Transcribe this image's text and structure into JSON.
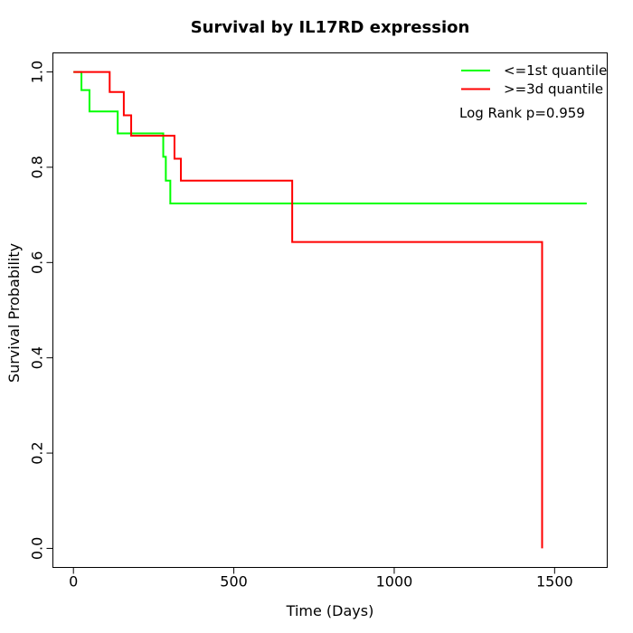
{
  "figure": {
    "background_color": "#ffffff",
    "axis_color": "#000000"
  },
  "chart_data": {
    "type": "line",
    "subtype": "kaplan-meier-step",
    "title": "Survival by IL17RD expression",
    "xlabel": "Time (Days)",
    "ylabel": "Survival Probability",
    "x_range": [
      -64,
      1664
    ],
    "y_range": [
      -0.04,
      1.04
    ],
    "grid": false,
    "legend_position": "top-right-inside",
    "x_ticks": [
      {
        "value": 0,
        "label": "0"
      },
      {
        "value": 500,
        "label": "500"
      },
      {
        "value": 1000,
        "label": "1000"
      },
      {
        "value": 1500,
        "label": "1500"
      }
    ],
    "y_ticks": [
      {
        "value": 0.0,
        "label": "0.0"
      },
      {
        "value": 0.2,
        "label": "0.2"
      },
      {
        "value": 0.4,
        "label": "0.4"
      },
      {
        "value": 0.6,
        "label": "0.6"
      },
      {
        "value": 0.8,
        "label": "0.8"
      },
      {
        "value": 1.0,
        "label": "1.0"
      }
    ],
    "series": [
      {
        "name": "<=1st quantile",
        "key": "le-1st-quantile",
        "color": "#00ff00",
        "step": true,
        "points": [
          [
            0,
            1.0
          ],
          [
            25,
            0.962
          ],
          [
            50,
            0.917
          ],
          [
            138,
            0.871
          ],
          [
            280,
            0.822
          ],
          [
            288,
            0.772
          ],
          [
            302,
            0.724
          ],
          [
            1600,
            0.724
          ]
        ]
      },
      {
        "name": ">=3d quantile",
        "key": "ge-3d-quantile",
        "color": "#ff0000",
        "step": true,
        "points": [
          [
            0,
            1.0
          ],
          [
            113,
            0.958
          ],
          [
            157,
            0.909
          ],
          [
            180,
            0.866
          ],
          [
            315,
            0.818
          ],
          [
            335,
            0.772
          ],
          [
            682,
            0.643
          ],
          [
            1461,
            0.0
          ]
        ]
      }
    ]
  },
  "legend": {
    "items": [
      {
        "label": "<=1st quantile",
        "color": "#00ff00"
      },
      {
        "label": ">=3d quantile",
        "color": "#ff0000"
      }
    ],
    "annotation": "Log Rank p=0.959"
  }
}
